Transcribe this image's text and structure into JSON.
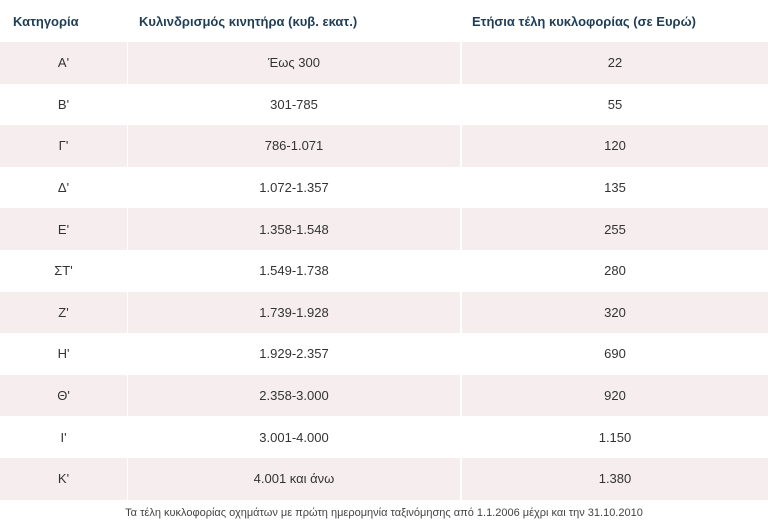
{
  "table": {
    "headers": [
      "Κατηγορία",
      "Κυλινδρισμός κινητήρα (κυβ. εκατ.)",
      "Ετήσια τέλη κυκλοφορίας (σε Ευρώ)"
    ],
    "rows": [
      [
        "Α'",
        "Έως 300",
        "22"
      ],
      [
        "Β'",
        "301-785",
        "55"
      ],
      [
        "Γ'",
        "786-1.071",
        "120"
      ],
      [
        "Δ'",
        "1.072-1.357",
        "135"
      ],
      [
        "Ε'",
        "1.358-1.548",
        "255"
      ],
      [
        "ΣΤ'",
        "1.549-1.738",
        "280"
      ],
      [
        "Ζ'",
        "1.739-1.928",
        "320"
      ],
      [
        "Η'",
        "1.929-2.357",
        "690"
      ],
      [
        "Θ'",
        "2.358-3.000",
        "920"
      ],
      [
        "Ι'",
        "3.001-4.000",
        "1.150"
      ],
      [
        "Κ'",
        "4.001 και άνω",
        "1.380"
      ]
    ]
  },
  "caption": "Τα τέλη κυκλοφορίας οχημάτων με πρώτη ημερομηνία ταξινόμησης από 1.1.2006 μέχρι και την 31.10.2010",
  "colors": {
    "header_text": "#1f3d55",
    "stripe": "#f6eeee"
  }
}
